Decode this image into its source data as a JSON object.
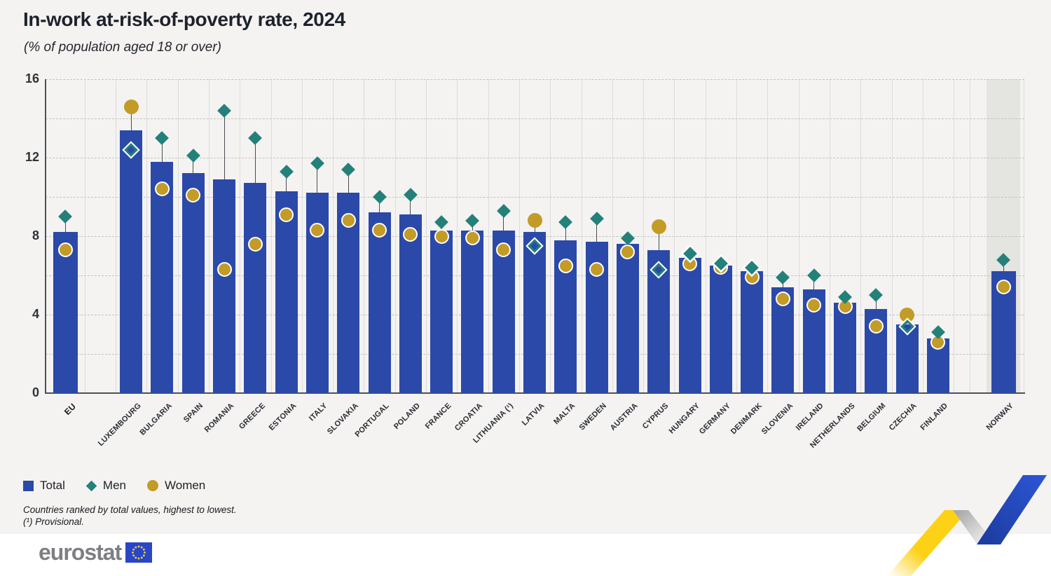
{
  "title": "In-work at-risk-of-poverty rate, 2024",
  "subtitle": "(% of population aged 18 or over)",
  "legend": {
    "items": [
      {
        "label": "Total",
        "color": "#2b49a8",
        "shape": "square"
      },
      {
        "label": "Men",
        "color": "#23817a",
        "shape": "diamond"
      },
      {
        "label": "Women",
        "color": "#c39b27",
        "shape": "circle"
      }
    ]
  },
  "footnotes": {
    "line1": "Countries ranked by total values, highest to lowest.",
    "line2": "(¹) Provisional."
  },
  "footer": {
    "logo_text": "eurostat"
  },
  "chart_data": {
    "type": "bar",
    "title": "In-work at-risk-of-poverty rate, 2024",
    "subtitle": "(% of population aged 18 or over)",
    "ylim": [
      0,
      16
    ],
    "yticks": [
      0,
      4,
      8,
      12,
      16
    ],
    "grid_step": 2,
    "grid": true,
    "legend_position": "bottom",
    "separated_groups": [
      "EU",
      "NORWAY"
    ],
    "shaded_group": "NORWAY",
    "categories": [
      "EU",
      "LUXEMBOURG",
      "BULGARIA",
      "SPAIN",
      "ROMANIA",
      "GREECE",
      "ESTONIA",
      "ITALY",
      "SLOVAKIA",
      "PORTUGAL",
      "POLAND",
      "FRANCE",
      "CROATIA",
      "LITHUANIA (¹)",
      "LATVIA",
      "MALTA",
      "SWEDEN",
      "AUSTRIA",
      "CYPRUS",
      "HUNGARY",
      "GERMANY",
      "DENMARK",
      "SLOVENIA",
      "IRELAND",
      "NETHERLANDS",
      "BELGIUM",
      "CZECHIA",
      "FINLAND",
      "NORWAY"
    ],
    "series": [
      {
        "name": "Total",
        "color": "#2b49a8",
        "values": [
          8.2,
          13.4,
          11.8,
          11.2,
          10.9,
          10.7,
          10.3,
          10.2,
          10.2,
          9.2,
          9.1,
          8.3,
          8.3,
          8.3,
          8.2,
          7.8,
          7.7,
          7.6,
          7.3,
          6.9,
          6.5,
          6.2,
          5.4,
          5.3,
          4.6,
          4.3,
          3.5,
          2.8,
          6.2
        ]
      },
      {
        "name": "Men",
        "color": "#23817a",
        "values": [
          9.0,
          12.4,
          13.0,
          12.1,
          14.4,
          13.0,
          11.3,
          11.7,
          11.4,
          10.0,
          10.1,
          8.7,
          8.8,
          9.3,
          7.5,
          8.7,
          8.9,
          7.9,
          6.3,
          7.1,
          6.6,
          6.4,
          5.9,
          6.0,
          4.9,
          5.0,
          3.4,
          3.1,
          6.8
        ]
      },
      {
        "name": "Women",
        "color": "#c39b27",
        "values": [
          7.3,
          14.6,
          10.4,
          10.1,
          6.3,
          7.6,
          9.1,
          8.3,
          8.8,
          8.3,
          8.1,
          8.0,
          7.9,
          7.3,
          8.8,
          6.5,
          6.3,
          7.2,
          8.5,
          6.6,
          6.4,
          5.9,
          4.8,
          4.5,
          4.4,
          3.4,
          4.0,
          2.6,
          5.4
        ]
      }
    ]
  }
}
